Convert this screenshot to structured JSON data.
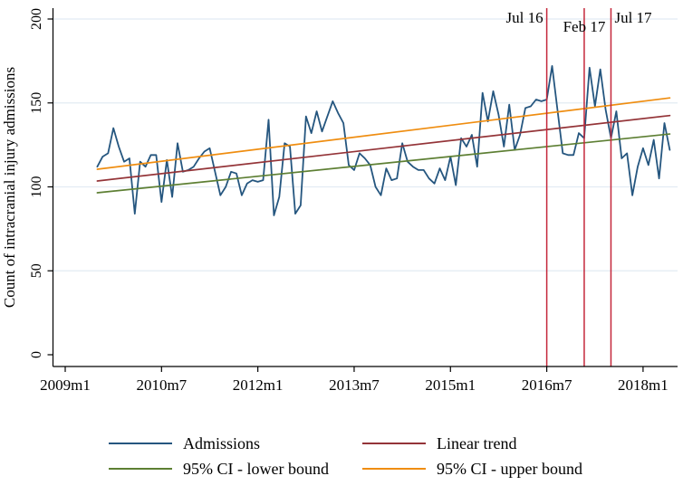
{
  "figure": {
    "background": "#ffffff",
    "text_color": "#000000",
    "axis_color": "#000000",
    "grid_color": "#e2ebf3"
  },
  "chart_data": {
    "type": "line",
    "title": "",
    "xlabel": "",
    "ylabel": "Count of intracranial injury admissions",
    "ylim": [
      0,
      200
    ],
    "y_ticks": [
      0,
      50,
      100,
      150,
      200
    ],
    "x_ticks": [
      {
        "month_index": 0,
        "label": "2009m1"
      },
      {
        "month_index": 18,
        "label": "2010m7"
      },
      {
        "month_index": 36,
        "label": "2012m1"
      },
      {
        "month_index": 54,
        "label": "2013m7"
      },
      {
        "month_index": 72,
        "label": "2015m1"
      },
      {
        "month_index": 90,
        "label": "2016m7"
      },
      {
        "month_index": 108,
        "label": "2018m1"
      }
    ],
    "grid": "horizontal gridlines at 50, 100, 150, 200",
    "x_unit": "months, monthly data",
    "series": [
      {
        "name": "Admissions",
        "color": "#25567f",
        "start": "2009m7",
        "start_month_index": 6,
        "frequency": "monthly",
        "values": [
          112,
          118,
          120,
          135,
          124,
          115,
          117,
          84,
          115,
          112,
          119,
          119,
          91,
          116,
          94,
          126,
          109,
          110,
          112,
          117,
          121,
          123,
          109,
          95,
          100,
          109,
          108,
          95,
          102,
          104,
          103,
          104,
          140,
          83,
          94,
          126,
          124,
          84,
          89,
          142,
          132,
          145,
          133,
          142,
          151,
          144,
          138,
          113,
          110,
          120,
          117,
          113,
          100,
          95,
          111,
          104,
          105,
          126,
          115,
          112,
          110,
          110,
          105,
          102,
          111,
          104,
          118,
          101,
          129,
          124,
          131,
          112,
          156,
          139,
          157,
          143,
          124,
          149,
          122,
          131,
          147,
          148,
          152,
          151,
          152,
          172,
          146,
          120,
          119,
          119,
          132,
          129,
          171,
          148,
          170,
          146,
          129,
          145,
          117,
          120,
          95,
          112,
          123,
          113,
          128,
          105,
          138,
          122
        ]
      },
      {
        "name": "Linear trend",
        "color": "#943438",
        "start": "2009m7",
        "end": "2018m6",
        "month_index_range": [
          6,
          113
        ],
        "values_at_ends": [
          103.5,
          142.5
        ]
      },
      {
        "name": "95% CI - lower bound",
        "color": "#5d7f33",
        "start": "2009m7",
        "end": "2018m6",
        "month_index_range": [
          6,
          113
        ],
        "values_at_ends": [
          96.5,
          131.5
        ]
      },
      {
        "name": "95% CI - upper bound",
        "color": "#ef8d10",
        "start": "2009m7",
        "end": "2018m6",
        "month_index_range": [
          6,
          113
        ],
        "values_at_ends": [
          110.5,
          153
        ]
      }
    ],
    "vlines": [
      {
        "label": "Jul 16",
        "month": "2016m7",
        "month_index": 90,
        "color": "#c4273a"
      },
      {
        "label": "Feb 17",
        "month": "2017m2",
        "month_index": 97,
        "color": "#c4273a"
      },
      {
        "label": "Jul 17",
        "month": "2017m7",
        "month_index": 102,
        "color": "#c4273a"
      }
    ],
    "legend": {
      "position": "bottom",
      "entries": [
        {
          "label": "Admissions",
          "color": "#25567f"
        },
        {
          "label": "Linear trend",
          "color": "#943438"
        },
        {
          "label": "95% CI - lower bound",
          "color": "#5d7f33"
        },
        {
          "label": "95% CI - upper bound",
          "color": "#ef8d10"
        }
      ]
    }
  }
}
